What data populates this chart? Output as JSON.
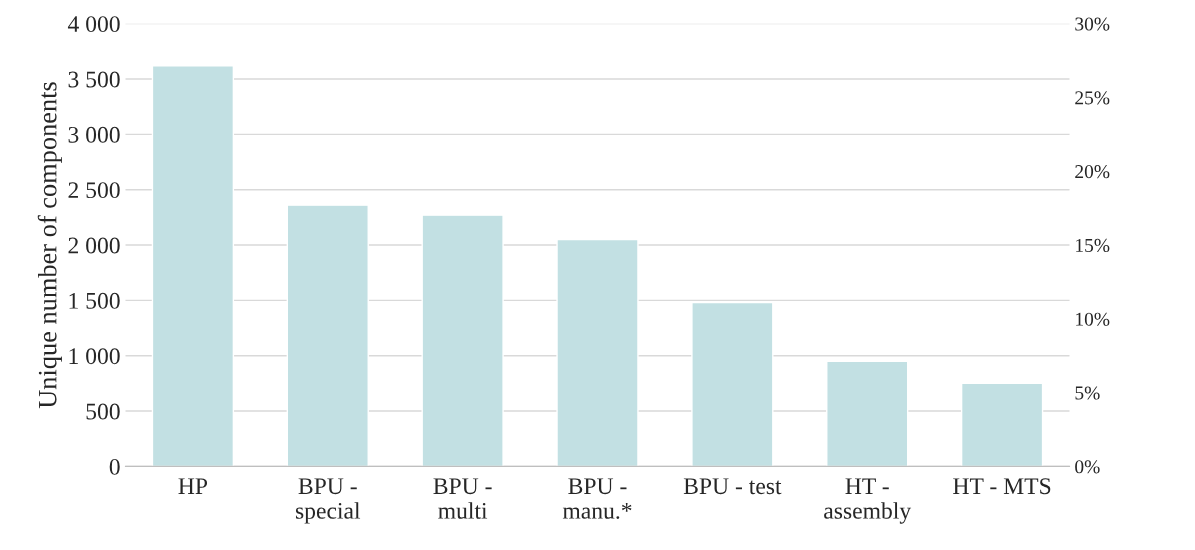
{
  "chart_data": {
    "type": "bar",
    "ylabel": "Unique number of components",
    "categories": [
      "HP",
      "BPU -\nspecial",
      "BPU -\nmulti",
      "BPU -\nmanu.*",
      "BPU - test",
      "HT -\nassembly",
      "HT - MTS"
    ],
    "series": [
      {
        "color": "#c2e0e3",
        "values": [
          3620,
          2360,
          2270,
          2050,
          1480,
          950,
          750
        ]
      }
    ],
    "ylim": [
      0,
      4000
    ],
    "yticks": [
      0,
      500,
      {
        "value": 1000,
        "label": "1 000"
      },
      {
        "value": 1500,
        "label": "1 500"
      },
      {
        "value": 2000,
        "label": "2 000"
      },
      {
        "value": 2500,
        "label": "2 500"
      },
      {
        "value": 3000,
        "label": "3 000"
      },
      {
        "value": 3500,
        "label": "3 500"
      },
      {
        "value": 4000,
        "label": "4 000"
      }
    ],
    "y2lim": [
      0,
      30
    ],
    "y2ticks": [
      {
        "value": 0,
        "label": "0%"
      },
      {
        "value": 5,
        "label": "5%"
      },
      {
        "value": 10,
        "label": "10%"
      },
      {
        "value": 15,
        "label": "15%"
      },
      {
        "value": 20,
        "label": "20%"
      },
      {
        "value": 25,
        "label": "25%"
      },
      {
        "value": 30,
        "label": "30%"
      }
    ],
    "grid": "y"
  }
}
